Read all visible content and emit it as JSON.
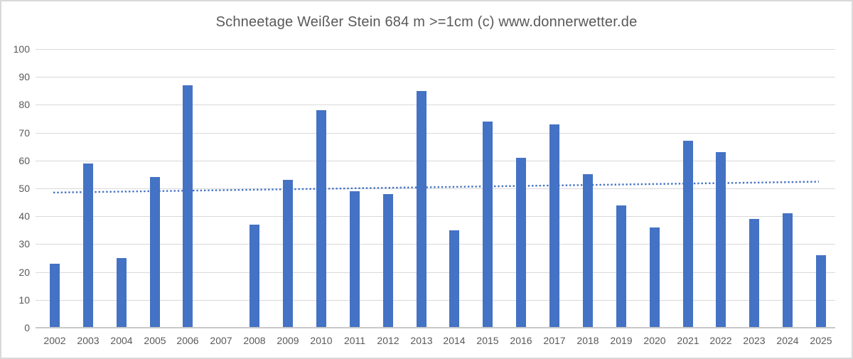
{
  "chart_data": {
    "type": "bar",
    "title": "Schneetage Weißer Stein 684 m >=1cm (c) www.donnerwetter.de",
    "categories": [
      "2002",
      "2003",
      "2004",
      "2005",
      "2006",
      "2007",
      "2008",
      "2009",
      "2010",
      "2011",
      "2012",
      "2013",
      "2014",
      "2015",
      "2016",
      "2017",
      "2018",
      "2019",
      "2020",
      "2021",
      "2022",
      "2023",
      "2024",
      "2025"
    ],
    "values": [
      23,
      59,
      25,
      54,
      87,
      null,
      37,
      53,
      78,
      49,
      48,
      85,
      35,
      74,
      61,
      73,
      55,
      44,
      36,
      67,
      63,
      39,
      41,
      26
    ],
    "xlabel": "",
    "ylabel": "",
    "ylim": [
      0,
      100
    ],
    "ytick_step": 10,
    "yticks": [
      0,
      10,
      20,
      30,
      40,
      50,
      60,
      70,
      80,
      90,
      100
    ],
    "grid": "horizontal",
    "legend_position": "none",
    "bar_color": "#4472C4",
    "trendline": {
      "type": "linear",
      "style": "dotted",
      "color": "#4472C4",
      "start_value": 48.5,
      "end_value": 52.4
    },
    "colors": {
      "background": "#FFFFFF",
      "frame_border": "#D9D9D9",
      "gridline": "#D9D9D9",
      "axis_line": "#C8C8C8",
      "tick_label_text": "#595959",
      "title_text": "#595959"
    }
  }
}
